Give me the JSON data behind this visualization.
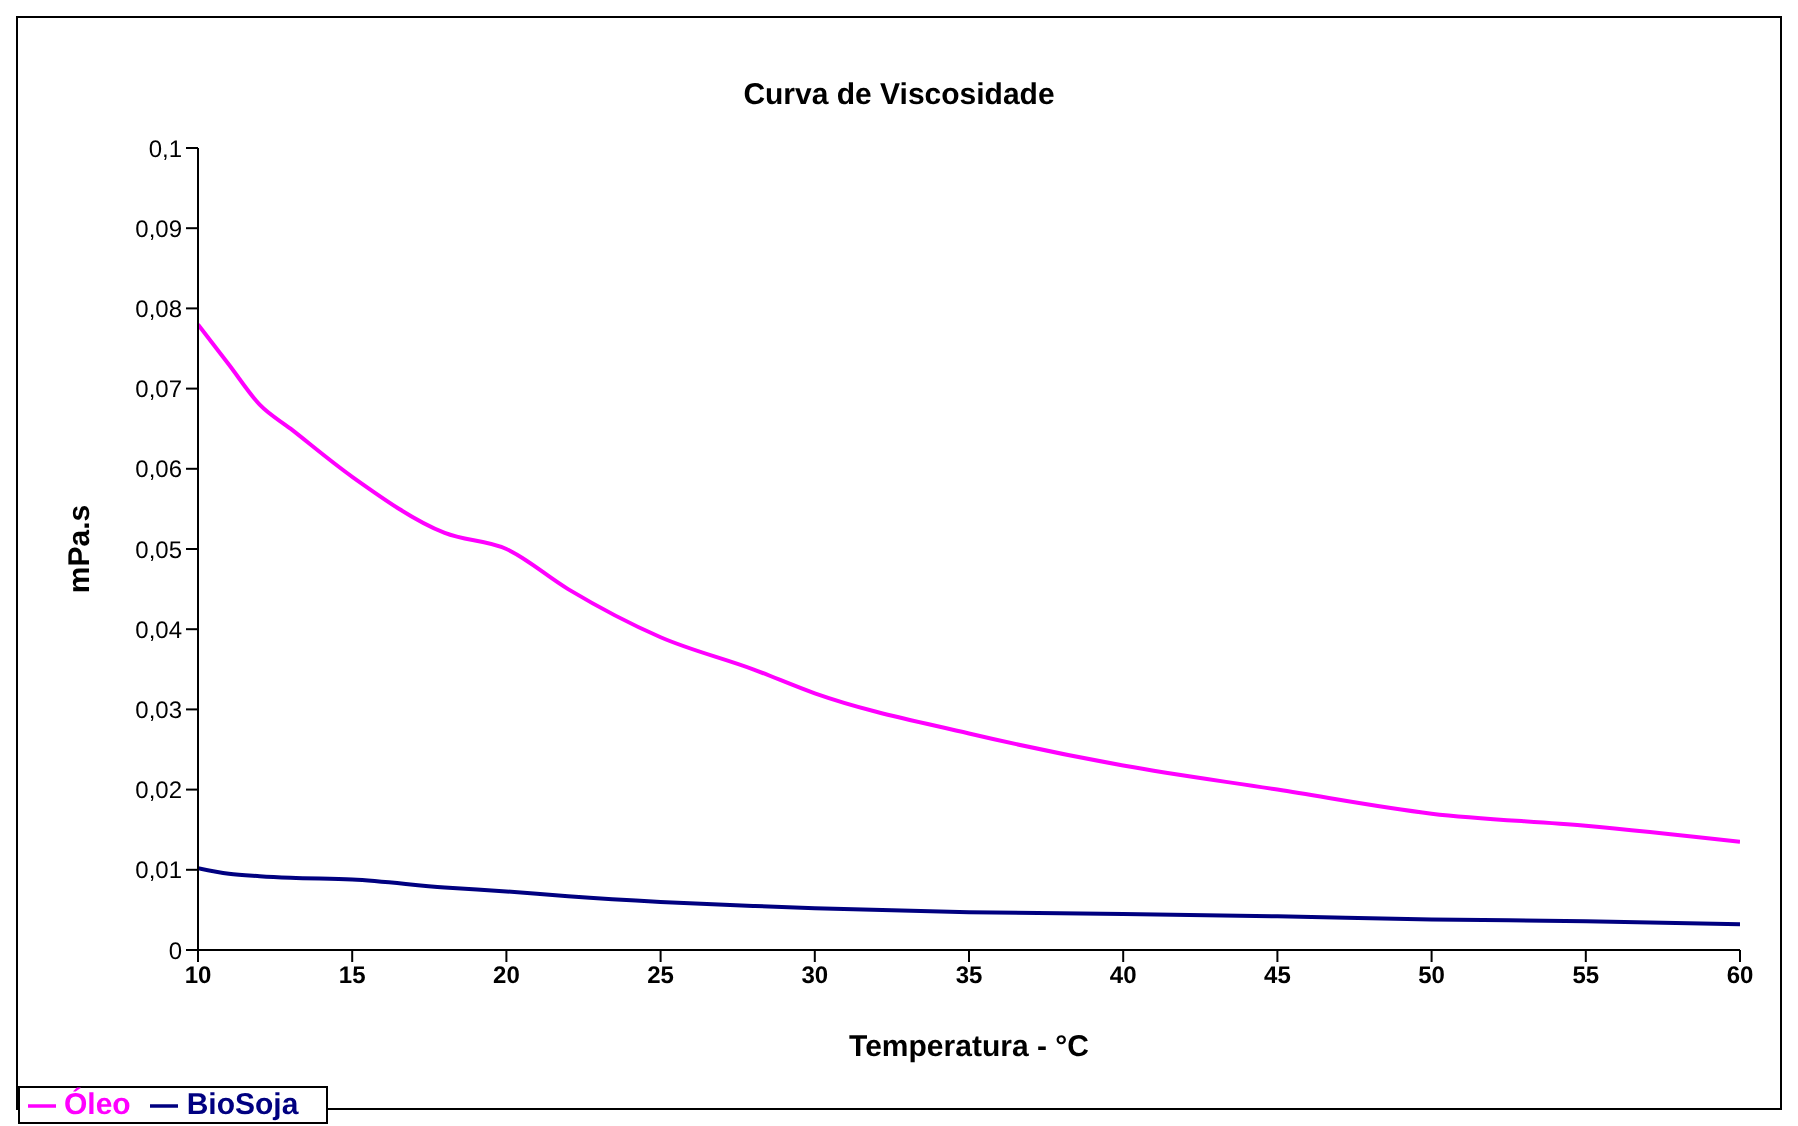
{
  "chart_data": {
    "type": "line",
    "title": "Curva de Viscosidade",
    "xlabel": "Temperatura - °C",
    "ylabel": "mPa.s",
    "x": [
      10,
      11,
      12,
      13,
      15,
      18,
      20,
      22,
      25,
      28,
      30,
      35,
      40,
      45,
      50,
      55,
      60
    ],
    "series": [
      {
        "name": "Óleo",
        "color": "#ff00ff",
        "values": [
          0.078,
          0.073,
          0.068,
          0.065,
          0.059,
          0.052,
          0.05,
          0.045,
          0.039,
          0.035,
          0.032,
          0.027,
          0.023,
          0.02,
          0.017,
          0.0155,
          0.0135
        ]
      },
      {
        "name": "BioSoja",
        "color": "#000080",
        "values": [
          0.0102,
          0.0095,
          0.0092,
          0.009,
          0.0088,
          0.0078,
          0.0073,
          0.0067,
          0.006,
          0.0055,
          0.0052,
          0.0047,
          0.0045,
          0.0042,
          0.0038,
          0.0036,
          0.0032
        ]
      }
    ],
    "xlim": [
      10,
      60
    ],
    "xticks": [
      10,
      15,
      20,
      25,
      30,
      35,
      40,
      45,
      50,
      55,
      60
    ],
    "ylim": [
      0,
      0.1
    ],
    "yticks": [
      0,
      {
        "value": 0.01,
        "label": "0,01"
      },
      {
        "value": 0.02,
        "label": "0,02"
      },
      {
        "value": 0.03,
        "label": "0,03"
      },
      {
        "value": 0.04,
        "label": "0,04"
      },
      {
        "value": 0.05,
        "label": "0,05"
      },
      {
        "value": 0.06,
        "label": "0,06"
      },
      {
        "value": 0.07,
        "label": "0,07"
      },
      {
        "value": 0.08,
        "label": "0,08"
      },
      {
        "value": 0.09,
        "label": "0,09"
      },
      {
        "value": 0.1,
        "label": "0,1"
      }
    ],
    "grid": false,
    "legend": "bottom left",
    "marker": "none",
    "line_style": "solid"
  }
}
